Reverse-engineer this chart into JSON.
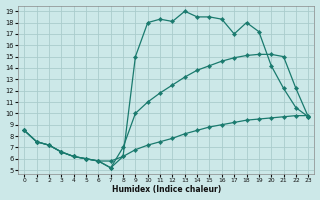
{
  "xlabel": "Humidex (Indice chaleur)",
  "bg_color": "#cce8e8",
  "grid_color": "#aacccc",
  "line_color": "#1a7a6e",
  "xlim_min": -0.5,
  "xlim_max": 23.5,
  "ylim_min": 4.7,
  "ylim_max": 19.5,
  "xticks": [
    0,
    1,
    2,
    3,
    4,
    5,
    6,
    7,
    8,
    9,
    10,
    11,
    12,
    13,
    14,
    15,
    16,
    17,
    18,
    19,
    20,
    21,
    22,
    23
  ],
  "yticks": [
    5,
    6,
    7,
    8,
    9,
    10,
    11,
    12,
    13,
    14,
    15,
    16,
    17,
    18,
    19
  ],
  "curve1_x": [
    0,
    1,
    2,
    3,
    4,
    5,
    6,
    7,
    8,
    9,
    10,
    11,
    12,
    13,
    14,
    15,
    16,
    17,
    18,
    19,
    20,
    21,
    22,
    23
  ],
  "curve1_y": [
    8.5,
    7.5,
    7.2,
    6.6,
    6.2,
    6.0,
    5.8,
    5.8,
    6.2,
    6.8,
    7.2,
    7.5,
    7.8,
    8.2,
    8.5,
    8.8,
    9.0,
    9.2,
    9.4,
    9.5,
    9.6,
    9.7,
    9.8,
    9.8
  ],
  "curve2_x": [
    0,
    1,
    2,
    3,
    4,
    5,
    6,
    7,
    8,
    9,
    10,
    11,
    12,
    13,
    14,
    15,
    16,
    17,
    18,
    19,
    20,
    21,
    22,
    23
  ],
  "curve2_y": [
    8.5,
    7.5,
    7.2,
    6.6,
    6.2,
    6.0,
    5.8,
    5.2,
    6.2,
    15.0,
    18.0,
    18.3,
    18.1,
    19.0,
    18.5,
    18.5,
    18.3,
    17.0,
    18.0,
    17.2,
    14.2,
    12.2,
    10.5,
    9.7
  ],
  "curve3_x": [
    0,
    1,
    2,
    3,
    4,
    5,
    6,
    7,
    8,
    9,
    10,
    11,
    12,
    13,
    14,
    15,
    16,
    17,
    18,
    19,
    20,
    21,
    22,
    23
  ],
  "curve3_y": [
    8.5,
    7.5,
    7.2,
    6.6,
    6.2,
    6.0,
    5.8,
    5.2,
    7.0,
    10.0,
    11.0,
    11.8,
    12.5,
    13.2,
    13.8,
    14.2,
    14.6,
    14.9,
    15.1,
    15.2,
    15.2,
    15.0,
    12.2,
    9.7
  ]
}
